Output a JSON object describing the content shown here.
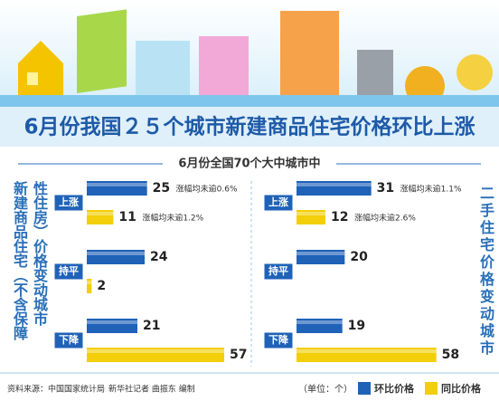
{
  "title": "6月份我国２５个城市新建商品住宅价格环比上涨",
  "subtitle": "6月份全国70个大中城市中",
  "source": "资料来源：中国国家统计局",
  "credit": "新华社记者 曲振东 编制",
  "unit": "（单位：个）",
  "chart_data": [
    {
      "type": "bar",
      "label": "新建商品住宅（不含保障性住房）价格变动城市",
      "categories": [
        "上涨",
        "持平",
        "下降"
      ],
      "xlim": [
        0,
        60
      ],
      "series": [
        {
          "name": "环比价格",
          "color": "#1f62b8",
          "values": [
            25,
            24,
            21
          ],
          "annotations": [
            "涨幅均未逾0.6%",
            null,
            null
          ]
        },
        {
          "name": "同比价格",
          "color": "#f2cf0a",
          "values": [
            11,
            2,
            57
          ],
          "annotations": [
            "涨幅均未逾1.2%",
            null,
            null
          ]
        }
      ]
    },
    {
      "type": "bar",
      "label": "二手住宅价格变动城市",
      "categories": [
        "上涨",
        "持平",
        "下降"
      ],
      "xlim": [
        0,
        60
      ],
      "series": [
        {
          "color": "#1f62b8",
          "values": [
            31,
            20,
            19
          ],
          "annotations": [
            "涨幅均未逾1.1%",
            null,
            null
          ]
        },
        {
          "color": "#f2cf0a",
          "values": [
            12,
            null,
            58
          ],
          "annotations": [
            "涨幅均未逾2.6%",
            null,
            null
          ]
        }
      ]
    }
  ]
}
